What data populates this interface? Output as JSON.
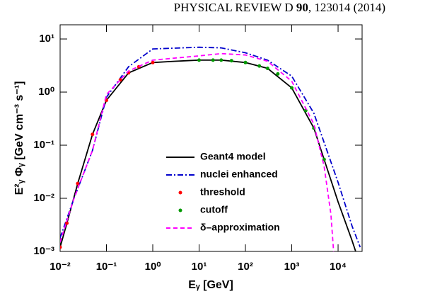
{
  "header": {
    "journal": "PHYSICAL REVIEW D",
    "volume": "90",
    "page": "123014 (2014)"
  },
  "chart_data": {
    "type": "line",
    "x_label": "Eᵧ [GeV]",
    "y_label": "E²ᵧ Φᵧ [GeV cm⁻³ s⁻¹]",
    "log_x": true,
    "log_y": true,
    "legend": "center",
    "xlim": [
      0.01,
      33000
    ],
    "ylim": [
      0.001,
      18.5
    ],
    "xticks": [
      {
        "value": 0.01,
        "label": "10⁻²"
      },
      {
        "value": 0.1,
        "label": "10⁻¹"
      },
      {
        "value": 1,
        "label": "10⁰"
      },
      {
        "value": 10,
        "label": "10¹"
      },
      {
        "value": 100,
        "label": "10²"
      },
      {
        "value": 1000,
        "label": "10³"
      },
      {
        "value": 10000,
        "label": "10⁴"
      }
    ],
    "yticks": [
      {
        "value": 0.001,
        "label": "10⁻³"
      },
      {
        "value": 0.01,
        "label": "10⁻²"
      },
      {
        "value": 0.1,
        "label": "10⁻¹"
      },
      {
        "value": 1,
        "label": "10⁰"
      },
      {
        "value": 10,
        "label": "10¹"
      }
    ],
    "series": [
      {
        "name": "Geant4 model",
        "color": "#000000",
        "style": "solid",
        "x": [
          0.01,
          0.014,
          0.024,
          0.05,
          0.1,
          0.3,
          1,
          3,
          10,
          30,
          100,
          300,
          1000,
          3000,
          5000,
          10000,
          20000,
          24000
        ],
        "values": [
          0.0012,
          0.0034,
          0.019,
          0.16,
          0.7,
          2.3,
          3.6,
          3.8,
          4.0,
          4.0,
          3.6,
          2.8,
          1.2,
          0.21,
          0.054,
          0.0086,
          0.0016,
          0.001
        ]
      },
      {
        "name": "nuclei enhanced",
        "color": "#0000cc",
        "style": "dash-dot",
        "x": [
          0.01,
          0.02,
          0.05,
          0.1,
          0.3,
          1,
          10,
          30,
          100,
          300,
          1000,
          3000,
          10000,
          20000,
          30000
        ],
        "values": [
          0.0018,
          0.01,
          0.08,
          0.8,
          3,
          6.5,
          7,
          6.8,
          5.5,
          4,
          2.0,
          0.4,
          0.02,
          0.003,
          0.0012
        ]
      },
      {
        "name": "threshold",
        "color": "#ff0000",
        "style": "markers",
        "x": [
          0.01,
          0.014,
          0.024,
          0.05,
          0.1,
          0.2,
          0.3,
          0.5,
          1
        ],
        "values": [
          0.0012,
          0.0034,
          0.019,
          0.16,
          0.7,
          1.7,
          2.3,
          3.0,
          3.6
        ]
      },
      {
        "name": "cutoff",
        "color": "#009900",
        "style": "markers",
        "x": [
          10,
          20,
          30,
          50,
          100,
          200,
          300,
          500,
          1000,
          2000,
          3000,
          5000
        ],
        "values": [
          4.0,
          4.0,
          4.0,
          3.9,
          3.6,
          3.1,
          2.8,
          2.2,
          1.2,
          0.45,
          0.21,
          0.054
        ]
      },
      {
        "name": "δ–approximation",
        "color": "#ff00ff",
        "style": "dash",
        "x": [
          0.01,
          0.02,
          0.05,
          0.1,
          0.3,
          1,
          10,
          30,
          100,
          300,
          1000,
          3000,
          5000,
          7000,
          8000
        ],
        "values": [
          0.0015,
          0.01,
          0.08,
          0.9,
          2.5,
          4,
          4.8,
          5.3,
          5.0,
          3.8,
          1.6,
          0.25,
          0.04,
          0.005,
          0.001
        ]
      }
    ]
  }
}
